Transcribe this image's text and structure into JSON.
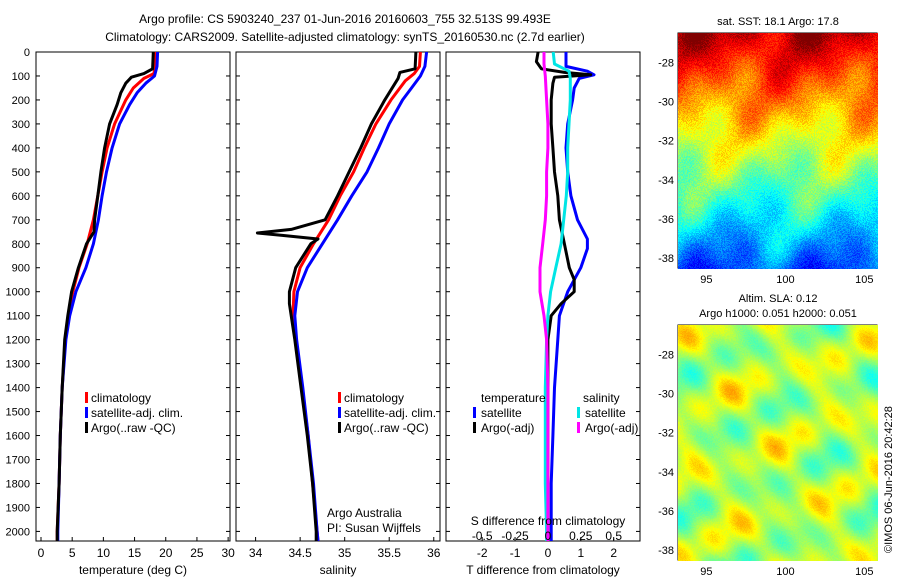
{
  "title_line1": "Argo profile: CS 5903240_237 01-Jun-2016 20160603_755 32.513S 99.493E",
  "title_line2": "Climatology: CARS2009. Satellite-adjusted climatology: synTS_20160530.nc (2.7d earlier)",
  "watermark": "©IMOS 06-Jun-2016 20:42:28",
  "colors": {
    "climatology": "#ff0000",
    "satellite": "#0000ff",
    "argo": "#000000",
    "s_satellite": "#00e5e5",
    "s_argo": "#ff00ff"
  },
  "chart_data": [
    {
      "type": "line",
      "panel": "temperature",
      "xlabel": "temperature (deg C)",
      "ylabel": "",
      "xlim": [
        -0.8,
        30.3
      ],
      "ylim": [
        2040,
        0
      ],
      "xticks": [
        "0",
        "5",
        "10",
        "15",
        "20",
        "25",
        "30"
      ],
      "yticks": [
        "0",
        "100",
        "200",
        "300",
        "400",
        "500",
        "600",
        "700",
        "800",
        "900",
        "1000",
        "1100",
        "1200",
        "1300",
        "1400",
        "1500",
        "1600",
        "1700",
        "1800",
        "1900",
        "2000"
      ],
      "legend": [
        "climatology",
        "satellite-adj. clim.",
        "Argo(..raw -QC)"
      ],
      "series": [
        {
          "name": "climatology",
          "color": "#ff0000",
          "depth": [
            0,
            60,
            90,
            110,
            150,
            200,
            300,
            400,
            500,
            600,
            700,
            800,
            900,
            1000,
            1100,
            1200,
            1400,
            1600,
            1800,
            2000,
            2040
          ],
          "values": [
            18.4,
            18.3,
            18.1,
            16.5,
            14.8,
            13.6,
            11.8,
            10.6,
            9.8,
            9.1,
            8.4,
            7.4,
            6.1,
            5.1,
            4.4,
            3.9,
            3.4,
            3.1,
            2.9,
            2.6,
            2.6
          ]
        },
        {
          "name": "satellite-adj. clim.",
          "color": "#0000ff",
          "depth": [
            0,
            60,
            100,
            130,
            170,
            220,
            300,
            400,
            500,
            600,
            700,
            800,
            900,
            1000,
            1100,
            1200,
            1400,
            1600,
            1800,
            2000,
            2040
          ],
          "values": [
            18.7,
            18.6,
            18.2,
            16.8,
            15.4,
            14.2,
            12.6,
            11.4,
            10.5,
            9.8,
            9.2,
            8.4,
            7.2,
            5.6,
            4.6,
            4.0,
            3.4,
            3.1,
            2.9,
            2.7,
            2.7
          ]
        },
        {
          "name": "Argo(..raw -QC)",
          "color": "#000000",
          "depth": [
            0,
            70,
            90,
            105,
            130,
            170,
            220,
            300,
            400,
            500,
            600,
            700,
            750,
            800,
            900,
            1000,
            1100,
            1200,
            1400,
            1600,
            1800,
            2000,
            2040
          ],
          "values": [
            18.0,
            17.9,
            16.5,
            14.5,
            13.6,
            12.8,
            12.2,
            11.0,
            10.2,
            9.6,
            9.1,
            8.6,
            8.5,
            7.3,
            6.0,
            4.9,
            4.3,
            3.8,
            3.4,
            3.1,
            2.9,
            2.6,
            2.6
          ]
        }
      ]
    },
    {
      "type": "line",
      "panel": "salinity",
      "xlabel": "salinity",
      "xlim": [
        33.78,
        36.07
      ],
      "ylim": [
        2040,
        0
      ],
      "xticks": [
        "34",
        "34.5",
        "35",
        "35.5",
        "36"
      ],
      "legend": [
        "climatology",
        "satellite-adj. clim.",
        "Argo(..raw -QC)"
      ],
      "annotation": [
        "Argo Australia",
        "PI: Susan Wijffels"
      ],
      "series": [
        {
          "name": "climatology",
          "color": "#ff0000",
          "depth": [
            0,
            60,
            90,
            120,
            200,
            300,
            400,
            500,
            600,
            700,
            800,
            900,
            1000,
            1100,
            1200,
            1400,
            1600,
            1800,
            2000,
            2040
          ],
          "values": [
            35.85,
            35.84,
            35.78,
            35.68,
            35.52,
            35.35,
            35.22,
            35.1,
            34.95,
            34.82,
            34.65,
            34.5,
            34.43,
            34.42,
            34.45,
            34.52,
            34.59,
            34.64,
            34.69,
            34.7
          ]
        },
        {
          "name": "satellite-adj. clim.",
          "color": "#0000ff",
          "depth": [
            0,
            60,
            100,
            150,
            200,
            300,
            400,
            500,
            600,
            700,
            800,
            900,
            1000,
            1100,
            1200,
            1400,
            1600,
            1800,
            2000,
            2040
          ],
          "values": [
            35.92,
            35.9,
            35.85,
            35.75,
            35.65,
            35.5,
            35.38,
            35.25,
            35.08,
            34.92,
            34.75,
            34.58,
            34.47,
            34.44,
            34.46,
            34.53,
            34.59,
            34.65,
            34.69,
            34.7
          ]
        },
        {
          "name": "Argo(..raw -QC)",
          "color": "#000000",
          "depth": [
            0,
            70,
            85,
            110,
            200,
            300,
            400,
            500,
            600,
            700,
            740,
            755,
            765,
            780,
            800,
            900,
            1000,
            1050,
            1100,
            1200,
            1400,
            1600,
            1800,
            2000,
            2040
          ],
          "values": [
            35.8,
            35.79,
            35.62,
            35.6,
            35.45,
            35.3,
            35.18,
            35.05,
            34.92,
            34.78,
            34.4,
            34.02,
            34.3,
            34.7,
            34.62,
            34.45,
            34.38,
            34.38,
            34.4,
            34.44,
            34.51,
            34.58,
            34.64,
            34.68,
            34.68
          ]
        }
      ]
    },
    {
      "type": "line",
      "panel": "difference",
      "xlabel": "T difference from climatology",
      "x2label": "S difference from climatology",
      "xlim": [
        -3.1,
        2.8
      ],
      "x2lim": [
        -0.775,
        0.7
      ],
      "ylim": [
        2040,
        0
      ],
      "xticks": [
        "-2",
        "-1",
        "0",
        "1",
        "2"
      ],
      "x2ticks": [
        "-0.5",
        "-0.25",
        "0",
        "0.25",
        "0.5"
      ],
      "legend": {
        "temperature_title": "temperature",
        "salinity_title": "salinity",
        "t_satellite": "satellite",
        "t_argo": "Argo(-adj)",
        "s_satellite": "satellite",
        "s_argo": "Argo(-adj)"
      },
      "series": [
        {
          "name": "T satellite",
          "color": "#0000ff",
          "kind": "T",
          "depth": [
            0,
            60,
            80,
            95,
            110,
            150,
            200,
            300,
            400,
            500,
            600,
            700,
            780,
            820,
            900,
            1000,
            1100,
            1200,
            1400,
            1600,
            1800,
            2000,
            2040
          ],
          "values": [
            0.55,
            0.55,
            1.2,
            1.4,
            0.95,
            0.8,
            0.75,
            0.6,
            0.55,
            0.6,
            0.7,
            0.9,
            1.2,
            1.2,
            1.0,
            0.6,
            0.35,
            0.3,
            0.2,
            0.15,
            0.1,
            0.1,
            0.1
          ]
        },
        {
          "name": "T Argo(-adj)",
          "color": "#000000",
          "kind": "T",
          "depth": [
            0,
            40,
            70,
            85,
            95,
            105,
            130,
            200,
            300,
            400,
            500,
            600,
            700,
            800,
            900,
            950,
            1000,
            1050,
            1100,
            1200,
            1400,
            1600,
            1800,
            2000,
            2040
          ],
          "values": [
            -0.3,
            -0.35,
            -0.2,
            0.5,
            1.3,
            0.2,
            0.15,
            0.1,
            0.1,
            0.15,
            0.2,
            0.3,
            0.35,
            0.5,
            0.65,
            0.8,
            0.8,
            0.4,
            0.1,
            0.0,
            0.0,
            0.0,
            0.0,
            0.0,
            0.0
          ]
        },
        {
          "name": "S satellite",
          "color": "#00e5e5",
          "kind": "S",
          "depth": [
            0,
            50,
            80,
            110,
            200,
            300,
            400,
            500,
            600,
            700,
            800,
            900,
            1000,
            1100,
            1200,
            1400,
            1600,
            1800,
            2000,
            2040
          ],
          "values": [
            0.04,
            0.05,
            0.16,
            0.17,
            0.17,
            0.16,
            0.15,
            0.15,
            0.14,
            0.12,
            0.1,
            0.06,
            0.02,
            0.0,
            -0.01,
            -0.02,
            -0.02,
            -0.02,
            -0.01,
            -0.01
          ]
        },
        {
          "name": "S Argo(-adj)",
          "color": "#ff00ff",
          "kind": "S",
          "depth": [
            0,
            50,
            100,
            200,
            300,
            400,
            500,
            600,
            700,
            800,
            900,
            1000,
            1100,
            1200,
            1400,
            1600,
            1800,
            2000,
            2040
          ],
          "values": [
            -0.03,
            -0.03,
            -0.02,
            -0.01,
            0.0,
            0.0,
            -0.01,
            -0.01,
            -0.02,
            -0.04,
            -0.06,
            -0.06,
            -0.03,
            -0.01,
            0.0,
            0.0,
            0.0,
            0.0,
            0.0
          ]
        }
      ]
    },
    {
      "type": "heatmap",
      "panel": "sst-map",
      "title": "sat. SST: 18.1  Argo: 17.8",
      "xlim": [
        93.2,
        105.8
      ],
      "ylim": [
        -38.5,
        -26.5
      ],
      "xticks": [
        "95",
        "100",
        "105"
      ],
      "yticks": [
        "-28",
        "-30",
        "-32",
        "-34",
        "-36",
        "-38"
      ]
    },
    {
      "type": "heatmap",
      "panel": "sla-map",
      "title_line1": "Altim. SLA: 0.12",
      "title_line2": "Argo h1000: 0.051 h2000: 0.051",
      "xlim": [
        93.2,
        105.8
      ],
      "ylim": [
        -38.5,
        -26.5
      ],
      "xticks": [
        "95",
        "100",
        "105"
      ],
      "yticks": [
        "-28",
        "-30",
        "-32",
        "-34",
        "-36",
        "-38"
      ]
    }
  ]
}
